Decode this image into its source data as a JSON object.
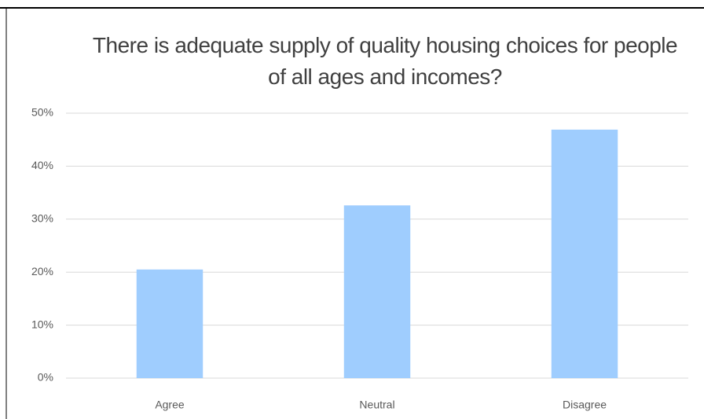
{
  "chart_data": {
    "type": "bar",
    "title": "There is adequate supply of quality housing choices for people of all ages and incomes?",
    "categories": [
      "Agree",
      "Neutral",
      "Disagree"
    ],
    "values": [
      20.5,
      32.6,
      46.9
    ],
    "color": "#9fcdfe",
    "ylim": [
      0,
      50
    ],
    "yticks": [
      {
        "value": 0,
        "label": "0%"
      },
      {
        "value": 10,
        "label": "10%"
      },
      {
        "value": 20,
        "label": "20%"
      },
      {
        "value": 30,
        "label": "30%"
      },
      {
        "value": 40,
        "label": "40%"
      },
      {
        "value": 50,
        "label": "50%"
      }
    ],
    "grid": true
  }
}
